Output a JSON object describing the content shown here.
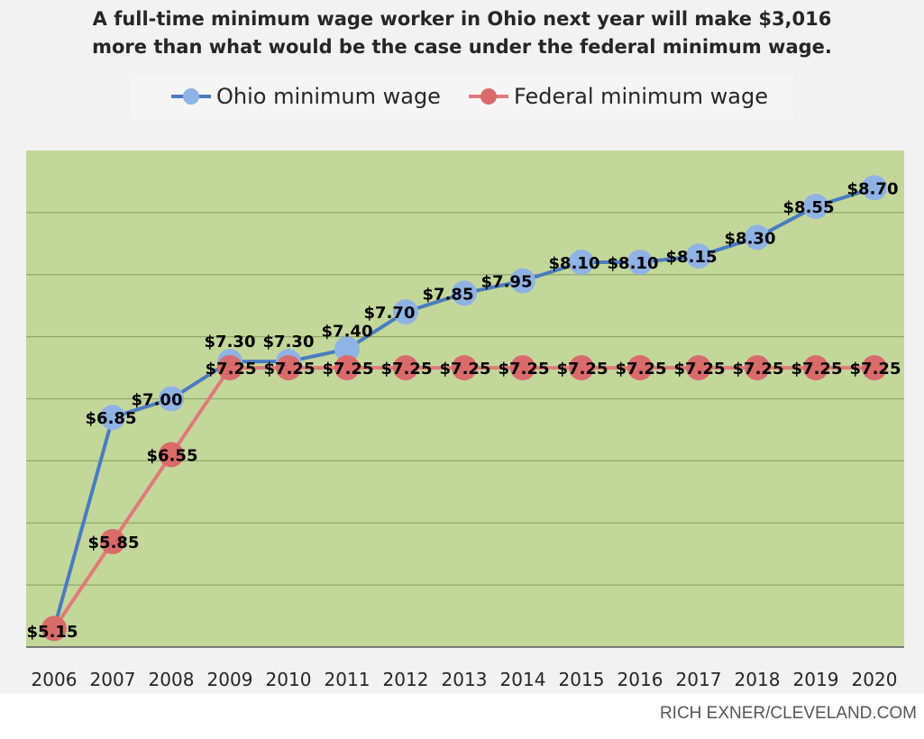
{
  "chart_data": {
    "type": "line",
    "title": "A full-time minimum wage worker in Ohio next year will make $3,016 more than what would be the case under the federal minimum wage.",
    "title_lines": [
      "A full-time minimum wage worker in Ohio next year will make $3,016",
      "more than what would be the case under the federal minimum wage."
    ],
    "categories": [
      "2006",
      "2007",
      "2008",
      "2009",
      "2010",
      "2011",
      "2012",
      "2013",
      "2014",
      "2015",
      "2016",
      "2017",
      "2018",
      "2019",
      "2020"
    ],
    "series": [
      {
        "name": "Ohio minimum wage",
        "values": [
          5.15,
          6.85,
          7.0,
          7.3,
          7.3,
          7.4,
          7.7,
          7.85,
          7.95,
          8.1,
          8.1,
          8.15,
          8.3,
          8.55,
          8.7
        ],
        "labels": [
          "$5.15",
          "$6.85",
          "$7.00",
          "$7.30",
          "$7.30",
          "$7.40",
          "$7.70",
          "$7.85",
          "$7.95",
          "$8.10",
          "$8.10",
          "$8.15",
          "$8.30",
          "$8.55",
          "$8.70"
        ],
        "line_color": "#4a7cbf",
        "marker_color": "#8fb3e4"
      },
      {
        "name": "Federal minimum wage",
        "values": [
          5.15,
          5.85,
          6.55,
          7.25,
          7.25,
          7.25,
          7.25,
          7.25,
          7.25,
          7.25,
          7.25,
          7.25,
          7.25,
          7.25,
          7.25
        ],
        "labels": [
          "$5.15",
          "$5.85",
          "$6.55",
          "$7.25",
          "$7.25",
          "$7.25",
          "$7.25",
          "$7.25",
          "$7.25",
          "$7.25",
          "$7.25",
          "$7.25",
          "$7.25",
          "$7.25",
          "$7.25"
        ],
        "line_color": "#e07a7a",
        "marker_color": "#d96b6b"
      }
    ],
    "ylim": [
      5.0,
      9.0
    ],
    "gridlines": [
      5.5,
      6.0,
      6.5,
      7.0,
      7.5,
      8.0,
      8.5
    ],
    "grid": true,
    "legend_position": "top",
    "plot_background": "#c4d79b",
    "xlabel": "",
    "ylabel": ""
  },
  "credit": "RICH EXNER/CLEVELAND.COM"
}
